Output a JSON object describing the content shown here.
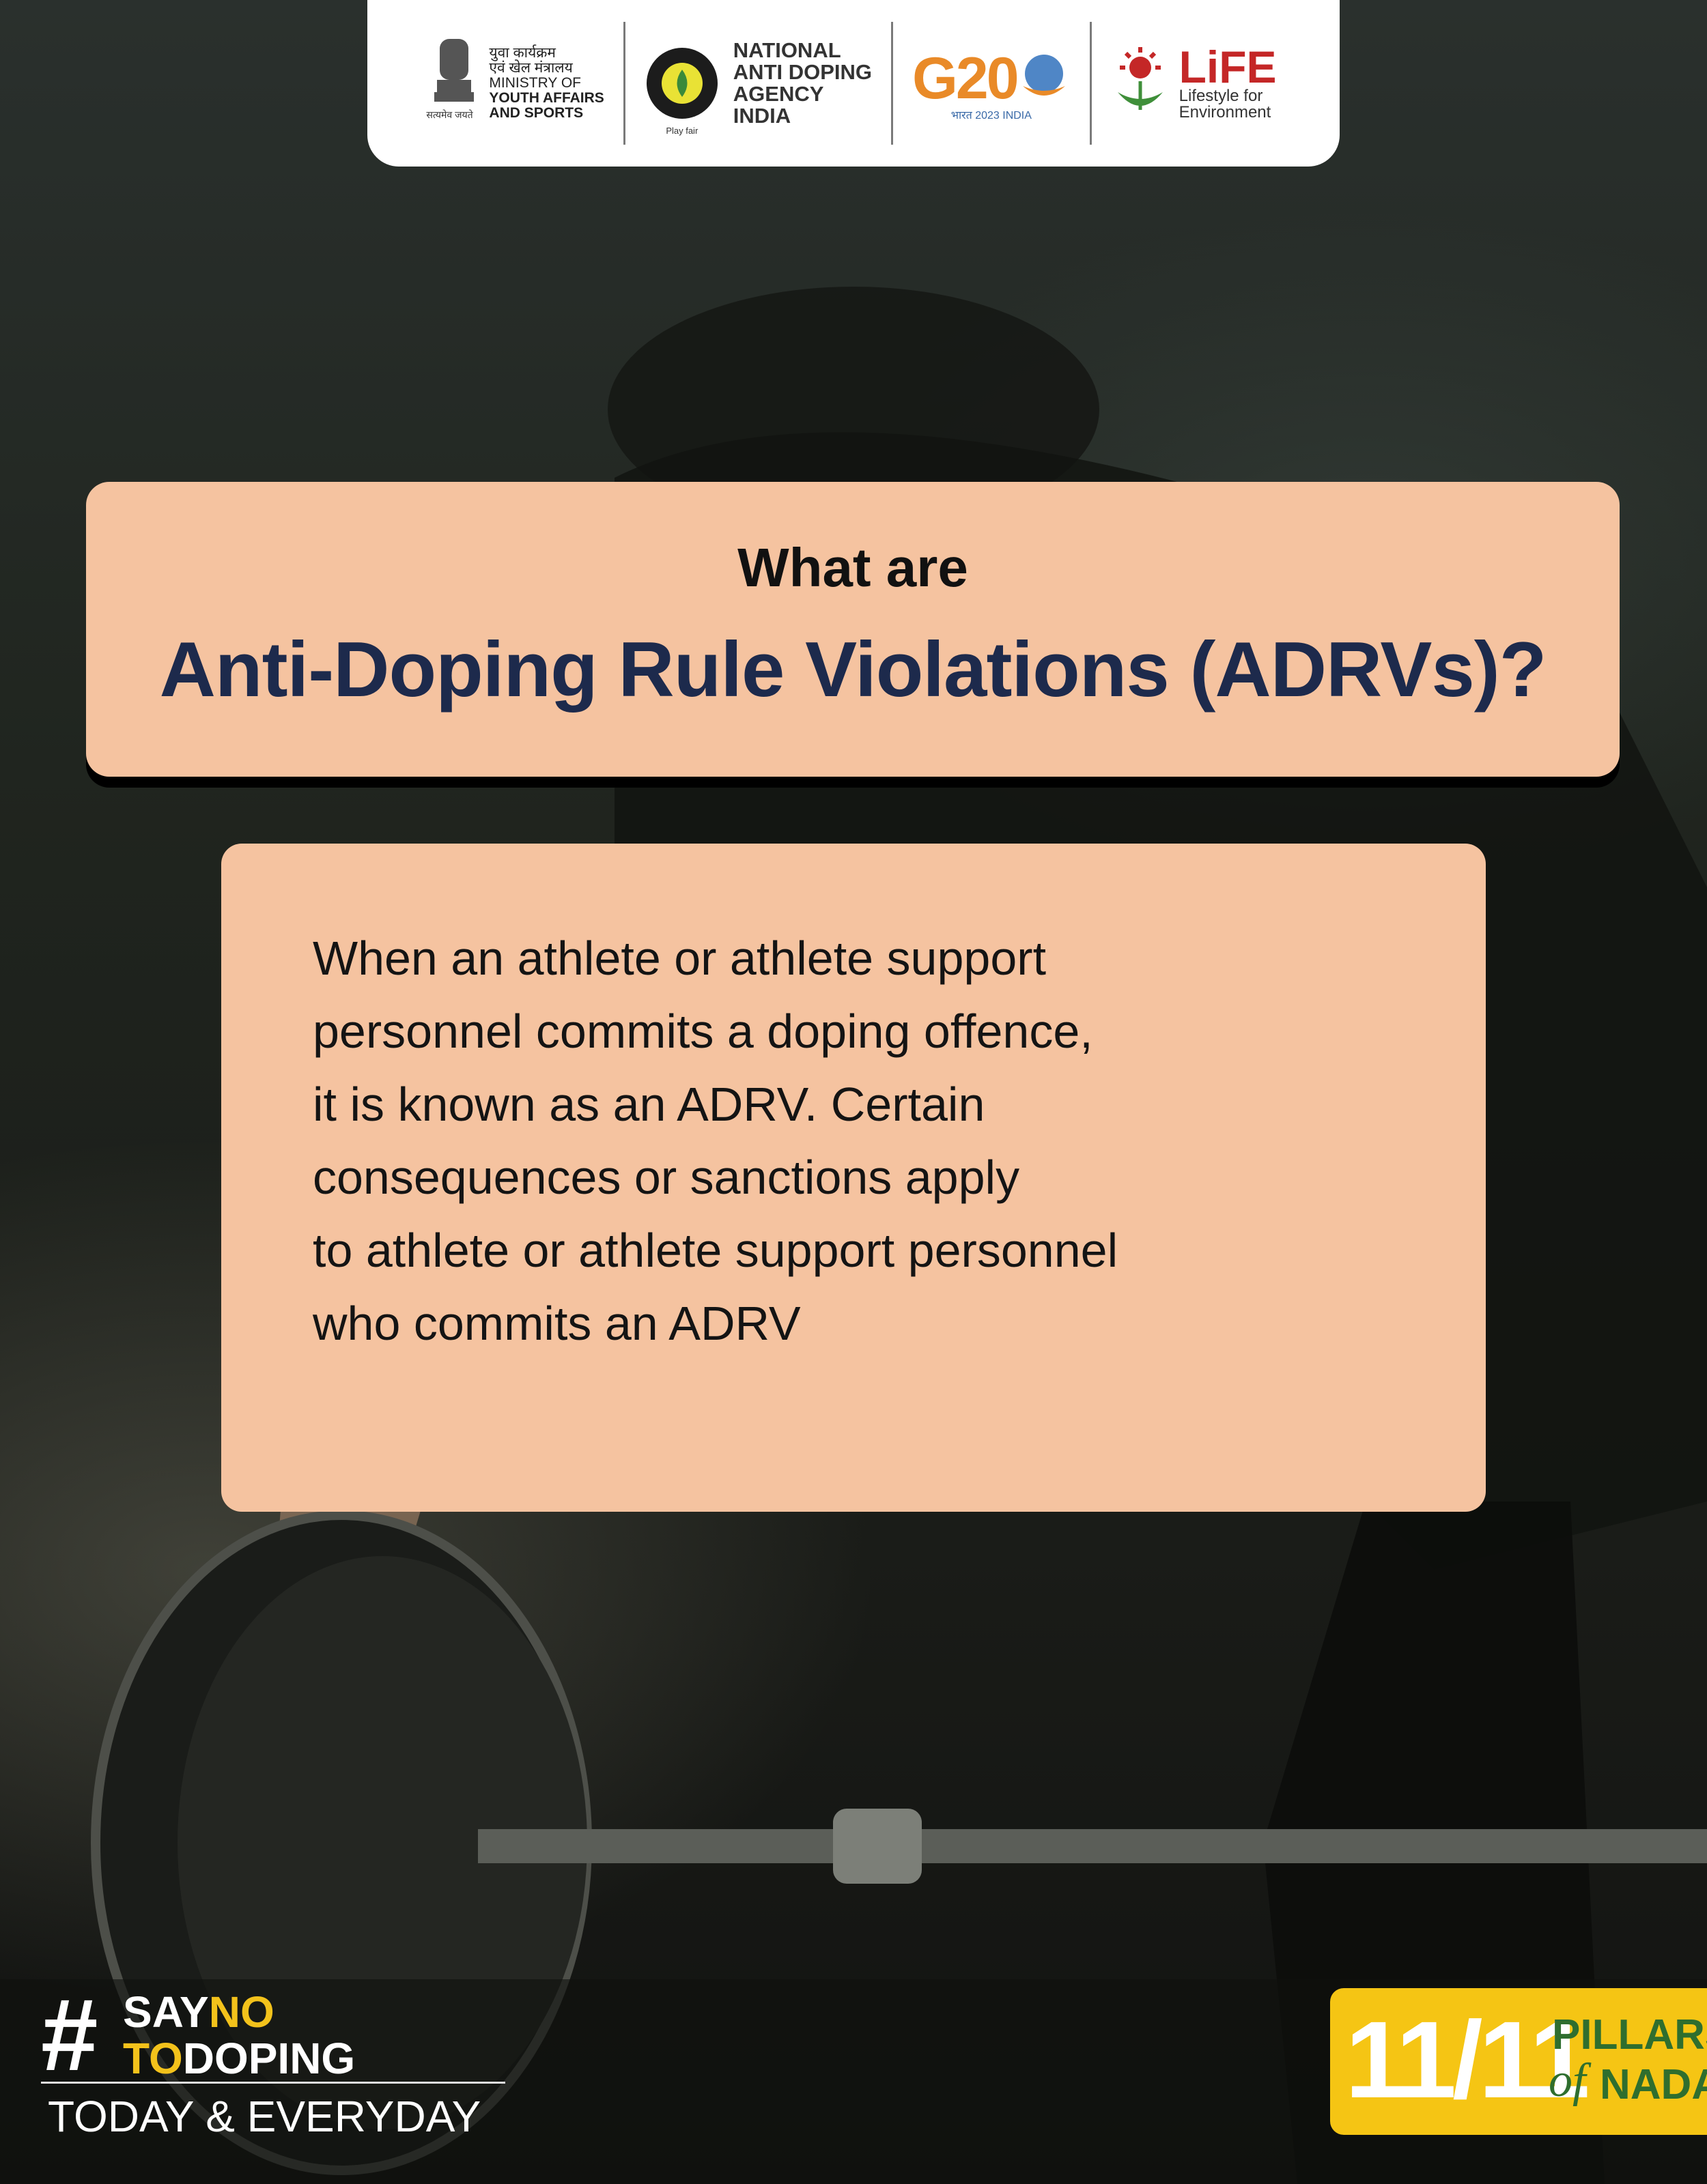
{
  "header": {
    "ministry_hindi_1": "युवा कार्यक्रम",
    "ministry_hindi_2": "एवं खेल मंत्रालय",
    "ministry_line1": "MINISTRY OF",
    "ministry_line2": "YOUTH AFFAIRS",
    "ministry_line3": "AND SPORTS",
    "ministry_tagline": "सत्यमेव जयते",
    "nada_line1": "NATIONAL",
    "nada_line2": "ANTI DOPING",
    "nada_line3": "AGENCY",
    "nada_line4": "INDIA",
    "nada_playfair": "Play fair",
    "g20_text": "G20",
    "g20_sub": "भारत 2023 INDIA",
    "life_title": "LiFE",
    "life_sub1": "Lifestyle for",
    "life_sub2": "Environment"
  },
  "title": {
    "line1": "What are",
    "line2": "Anti-Doping Rule Violations (ADRVs)?"
  },
  "body": {
    "lines": [
      "When an athlete or athlete support",
      "personnel commits a doping offence,",
      "it is known as an ADRV. Certain",
      "consequences or sanctions apply",
      "to athlete or athlete support personnel",
      "who commits an ADRV"
    ]
  },
  "footer": {
    "hash": "#",
    "say": "SAY",
    "no": "NO",
    "to": "TO",
    "doping": "DOPING",
    "tagline": "TODAY & EVERYDAY",
    "pillars_count": "11/11",
    "pillars_word": "PILLARS",
    "pillars_of": "of",
    "pillars_nada": "NADA"
  },
  "colors": {
    "card": "#f5c3a0",
    "title_blue": "#1d2a4c",
    "accent_yellow": "#f3c21b",
    "pillars_green": "#2f6e2e"
  }
}
